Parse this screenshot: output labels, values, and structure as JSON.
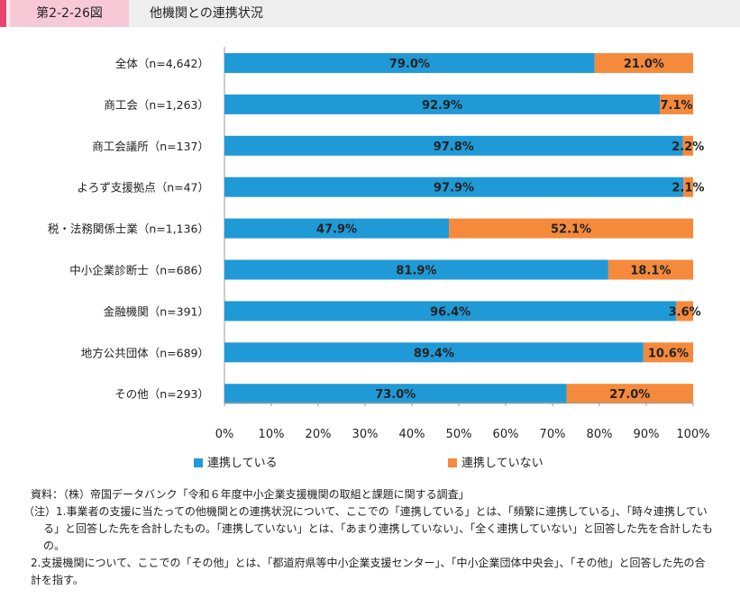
{
  "header": {
    "figure_label": "第2-2-26図",
    "title": "他機関との連携状況",
    "accent_color": "#e8456e"
  },
  "chart_data": {
    "type": "bar",
    "orientation": "horizontal",
    "stacked": true,
    "percent_stacked": true,
    "title": "",
    "xlabel": "",
    "ylabel": "",
    "xlim": [
      0,
      100
    ],
    "x_ticks": [
      "0%",
      "10%",
      "20%",
      "30%",
      "40%",
      "50%",
      "60%",
      "70%",
      "80%",
      "90%",
      "100%"
    ],
    "grid": false,
    "legend_position": "bottom",
    "categories": [
      "全体（n=4,642）",
      "商工会（n=1,263）",
      "商工会議所（n=137）",
      "よろず支援拠点（n=47）",
      "税・法務関係士業（n=1,136）",
      "中小企業診断士（n=686）",
      "金融機関（n=391）",
      "地方公共団体（n=689）",
      "その他（n=293）"
    ],
    "series": [
      {
        "name": "連携している",
        "color": "#1f9ad6",
        "values": [
          79.0,
          92.9,
          97.8,
          97.9,
          47.9,
          81.9,
          96.4,
          89.4,
          73.0
        ],
        "labels": [
          "79.0%",
          "92.9%",
          "97.8%",
          "97.9%",
          "47.9%",
          "81.9%",
          "96.4%",
          "89.4%",
          "73.0%"
        ]
      },
      {
        "name": "連携していない",
        "color": "#f58a3c",
        "values": [
          21.0,
          7.1,
          2.2,
          2.1,
          52.1,
          18.1,
          3.6,
          10.6,
          27.0
        ],
        "labels": [
          "21.0%",
          "7.1%",
          "2.2%",
          "2.1%",
          "52.1%",
          "18.1%",
          "3.6%",
          "10.6%",
          "27.0%"
        ]
      }
    ]
  },
  "notes": {
    "source": "資料：（株）帝国データバンク「令和６年度中小企業支援機関の取組と課題に関する調査」",
    "note1": "（注）1.事業者の支援に当たっての他機関との連携状況について、ここでの「連携している」とは、「頻繁に連携している」、「時々連携している」と回答した先を合計したもの。「連携していない」とは、「あまり連携していない」、「全く連携していない」と回答した先を合計したもの。",
    "note2": "2.支援機関について、ここでの「その他」とは、「都道府県等中小企業支援センター」、「中小企業団体中央会」、「その他」と回答した先の合計を指す。"
  }
}
